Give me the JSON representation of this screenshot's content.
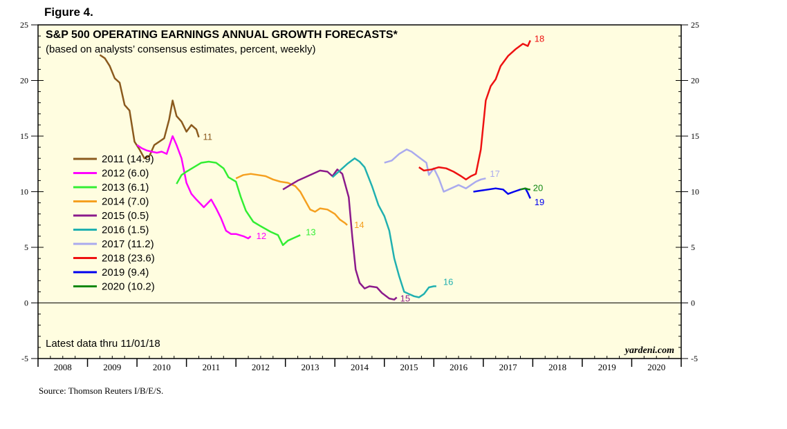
{
  "figure_label": "Figure 4.",
  "source": "Source: Thomson Reuters I/B/E/S.",
  "chart_data": {
    "type": "line",
    "title": "S&P 500 OPERATING EARNINGS ANNUAL GROWTH FORECASTS*",
    "subtitle": "(based on analysts’ consensus estimates, percent, weekly)",
    "note": "Latest data thru 11/01/18",
    "brand": "yardeni.com",
    "xlabel": "",
    "ylabel": "",
    "xlim": [
      2008,
      2021
    ],
    "ylim": [
      -5,
      25
    ],
    "yticks": [
      -5,
      0,
      5,
      10,
      15,
      20,
      25
    ],
    "ytick_labels": [
      "-5",
      "0",
      "5",
      "10",
      "15",
      "20",
      "25"
    ],
    "years": [
      "2008",
      "2009",
      "2010",
      "2011",
      "2012",
      "2013",
      "2014",
      "2015",
      "2016",
      "2017",
      "2018",
      "2019",
      "2020"
    ],
    "legend_position": "left",
    "series": [
      {
        "name": "2011",
        "legend": "2011 (14.9)",
        "end_label": "11",
        "color": "#8B5A1E",
        "points": [
          [
            2009.25,
            22.3
          ],
          [
            2009.35,
            22.0
          ],
          [
            2009.45,
            21.3
          ],
          [
            2009.55,
            20.2
          ],
          [
            2009.65,
            19.8
          ],
          [
            2009.75,
            17.8
          ],
          [
            2009.85,
            17.3
          ],
          [
            2009.95,
            14.5
          ],
          [
            2010.05,
            13.8
          ],
          [
            2010.15,
            13.0
          ],
          [
            2010.25,
            13.2
          ],
          [
            2010.35,
            14.2
          ],
          [
            2010.45,
            14.5
          ],
          [
            2010.55,
            14.8
          ],
          [
            2010.65,
            16.5
          ],
          [
            2010.72,
            18.2
          ],
          [
            2010.8,
            16.8
          ],
          [
            2010.9,
            16.3
          ],
          [
            2011.0,
            15.4
          ],
          [
            2011.1,
            16.0
          ],
          [
            2011.2,
            15.6
          ],
          [
            2011.25,
            14.9
          ]
        ]
      },
      {
        "name": "2012",
        "legend": "2012 (6.0)",
        "end_label": "12",
        "color": "#FF00FF",
        "points": [
          [
            2010.0,
            14.2
          ],
          [
            2010.1,
            13.9
          ],
          [
            2010.2,
            13.7
          ],
          [
            2010.3,
            13.6
          ],
          [
            2010.4,
            13.5
          ],
          [
            2010.5,
            13.6
          ],
          [
            2010.6,
            13.4
          ],
          [
            2010.72,
            15.0
          ],
          [
            2010.8,
            14.2
          ],
          [
            2010.9,
            13.0
          ],
          [
            2011.0,
            10.8
          ],
          [
            2011.1,
            9.8
          ],
          [
            2011.2,
            9.3
          ],
          [
            2011.35,
            8.6
          ],
          [
            2011.5,
            9.3
          ],
          [
            2011.6,
            8.5
          ],
          [
            2011.7,
            7.6
          ],
          [
            2011.8,
            6.5
          ],
          [
            2011.9,
            6.2
          ],
          [
            2012.0,
            6.2
          ],
          [
            2012.15,
            6.0
          ],
          [
            2012.25,
            5.8
          ],
          [
            2012.3,
            6.0
          ]
        ]
      },
      {
        "name": "2013",
        "legend": "2013 (6.1)",
        "end_label": "13",
        "color": "#33EE33",
        "points": [
          [
            2010.8,
            10.7
          ],
          [
            2010.9,
            11.5
          ],
          [
            2011.0,
            11.8
          ],
          [
            2011.15,
            12.2
          ],
          [
            2011.3,
            12.6
          ],
          [
            2011.45,
            12.7
          ],
          [
            2011.6,
            12.6
          ],
          [
            2011.75,
            12.1
          ],
          [
            2011.85,
            11.3
          ],
          [
            2012.0,
            10.9
          ],
          [
            2012.1,
            9.5
          ],
          [
            2012.2,
            8.3
          ],
          [
            2012.35,
            7.3
          ],
          [
            2012.5,
            6.9
          ],
          [
            2012.7,
            6.4
          ],
          [
            2012.85,
            6.1
          ],
          [
            2012.95,
            5.2
          ],
          [
            2013.05,
            5.6
          ],
          [
            2013.2,
            5.9
          ],
          [
            2013.3,
            6.1
          ]
        ]
      },
      {
        "name": "2014",
        "legend": "2014 (7.0)",
        "end_label": "14",
        "color": "#F5A020",
        "points": [
          [
            2012.0,
            11.2
          ],
          [
            2012.15,
            11.5
          ],
          [
            2012.3,
            11.6
          ],
          [
            2012.45,
            11.5
          ],
          [
            2012.6,
            11.4
          ],
          [
            2012.75,
            11.1
          ],
          [
            2012.9,
            10.9
          ],
          [
            2013.05,
            10.8
          ],
          [
            2013.2,
            10.5
          ],
          [
            2013.3,
            10.0
          ],
          [
            2013.4,
            9.2
          ],
          [
            2013.5,
            8.4
          ],
          [
            2013.6,
            8.2
          ],
          [
            2013.7,
            8.5
          ],
          [
            2013.85,
            8.4
          ],
          [
            2014.0,
            8.0
          ],
          [
            2014.1,
            7.5
          ],
          [
            2014.2,
            7.2
          ],
          [
            2014.25,
            7.0
          ]
        ]
      },
      {
        "name": "2015",
        "legend": "2015 (0.5)",
        "end_label": "15",
        "color": "#8B1A8B",
        "points": [
          [
            2012.95,
            10.2
          ],
          [
            2013.1,
            10.6
          ],
          [
            2013.25,
            11.0
          ],
          [
            2013.4,
            11.3
          ],
          [
            2013.55,
            11.6
          ],
          [
            2013.7,
            11.9
          ],
          [
            2013.85,
            11.8
          ],
          [
            2013.95,
            11.4
          ],
          [
            2014.05,
            12.0
          ],
          [
            2014.15,
            11.6
          ],
          [
            2014.28,
            9.5
          ],
          [
            2014.35,
            6.0
          ],
          [
            2014.42,
            3.0
          ],
          [
            2014.5,
            1.8
          ],
          [
            2014.6,
            1.3
          ],
          [
            2014.7,
            1.5
          ],
          [
            2014.85,
            1.4
          ],
          [
            2014.95,
            0.9
          ],
          [
            2015.1,
            0.4
          ],
          [
            2015.2,
            0.3
          ],
          [
            2015.25,
            0.5
          ]
        ]
      },
      {
        "name": "2016",
        "legend": "2016 (1.5)",
        "end_label": "16",
        "color": "#20B0B0",
        "points": [
          [
            2013.95,
            11.3
          ],
          [
            2014.1,
            11.9
          ],
          [
            2014.25,
            12.5
          ],
          [
            2014.4,
            13.0
          ],
          [
            2014.5,
            12.7
          ],
          [
            2014.6,
            12.2
          ],
          [
            2014.75,
            10.5
          ],
          [
            2014.88,
            8.8
          ],
          [
            2015.0,
            7.8
          ],
          [
            2015.1,
            6.5
          ],
          [
            2015.2,
            4.0
          ],
          [
            2015.3,
            2.4
          ],
          [
            2015.4,
            1.0
          ],
          [
            2015.5,
            0.8
          ],
          [
            2015.6,
            0.6
          ],
          [
            2015.7,
            0.5
          ],
          [
            2015.8,
            0.8
          ],
          [
            2015.9,
            1.4
          ],
          [
            2016.0,
            1.5
          ],
          [
            2016.05,
            1.5
          ]
        ]
      },
      {
        "name": "2017",
        "legend": "2017 (11.2)",
        "end_label": "17",
        "color": "#AAAAEE",
        "points": [
          [
            2015.0,
            12.6
          ],
          [
            2015.15,
            12.8
          ],
          [
            2015.3,
            13.4
          ],
          [
            2015.45,
            13.8
          ],
          [
            2015.55,
            13.6
          ],
          [
            2015.7,
            13.1
          ],
          [
            2015.85,
            12.6
          ],
          [
            2015.9,
            11.5
          ],
          [
            2016.0,
            12.1
          ],
          [
            2016.1,
            11.2
          ],
          [
            2016.2,
            10.0
          ],
          [
            2016.35,
            10.3
          ],
          [
            2016.5,
            10.6
          ],
          [
            2016.65,
            10.3
          ],
          [
            2016.75,
            10.6
          ],
          [
            2016.85,
            10.9
          ],
          [
            2016.95,
            11.1
          ],
          [
            2017.05,
            11.2
          ]
        ]
      },
      {
        "name": "2018",
        "legend": "2018 (23.6)",
        "end_label": "18",
        "color": "#EE1111",
        "points": [
          [
            2015.7,
            12.2
          ],
          [
            2015.8,
            11.9
          ],
          [
            2015.95,
            12.0
          ],
          [
            2016.1,
            12.2
          ],
          [
            2016.25,
            12.1
          ],
          [
            2016.4,
            11.8
          ],
          [
            2016.55,
            11.4
          ],
          [
            2016.65,
            11.1
          ],
          [
            2016.75,
            11.4
          ],
          [
            2016.85,
            11.6
          ],
          [
            2016.95,
            13.8
          ],
          [
            2017.05,
            18.2
          ],
          [
            2017.15,
            19.5
          ],
          [
            2017.25,
            20.1
          ],
          [
            2017.35,
            21.3
          ],
          [
            2017.5,
            22.2
          ],
          [
            2017.65,
            22.8
          ],
          [
            2017.8,
            23.3
          ],
          [
            2017.9,
            23.1
          ],
          [
            2017.95,
            23.6
          ]
        ]
      },
      {
        "name": "2019",
        "legend": "2019 (9.4)",
        "end_label": "19",
        "color": "#0000EE",
        "points": [
          [
            2016.8,
            10.0
          ],
          [
            2016.95,
            10.1
          ],
          [
            2017.1,
            10.2
          ],
          [
            2017.25,
            10.3
          ],
          [
            2017.4,
            10.2
          ],
          [
            2017.5,
            9.8
          ],
          [
            2017.62,
            10.0
          ],
          [
            2017.75,
            10.2
          ],
          [
            2017.85,
            10.3
          ],
          [
            2017.9,
            9.9
          ],
          [
            2017.95,
            9.4
          ]
        ]
      },
      {
        "name": "2020",
        "legend": "2020 (10.2)",
        "end_label": "20",
        "color": "#118811",
        "points": [
          [
            2017.75,
            10.2
          ],
          [
            2017.85,
            10.3
          ],
          [
            2017.92,
            10.2
          ],
          [
            2017.95,
            10.2
          ]
        ]
      }
    ]
  }
}
